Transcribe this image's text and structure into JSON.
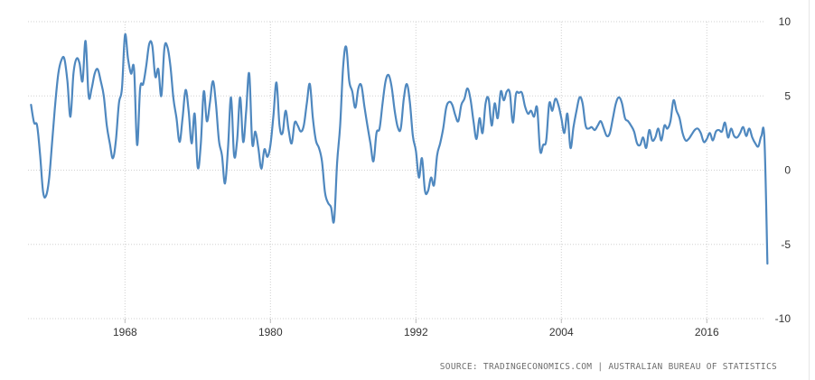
{
  "source": "SOURCE: TRADINGECONOMICS.COM  |  AUSTRALIAN BUREAU OF STATISTICS",
  "colors": {
    "line": "#4f88bf",
    "grid": "#d0d0d0",
    "text": "#333333"
  },
  "chart_data": {
    "type": "line",
    "title": "",
    "xlabel": "",
    "ylabel": "",
    "xlim": [
      1960.0,
      2020.75
    ],
    "ylim": [
      -10,
      10
    ],
    "x_ticks": [
      1968,
      1980,
      1992,
      2004,
      2016
    ],
    "y_ticks": [
      10,
      5,
      0,
      -5,
      -10
    ],
    "x_tick_labels": [
      "1968",
      "1980",
      "1992",
      "2004",
      "2016"
    ],
    "y_tick_labels": [
      "10",
      "5",
      "0",
      "-5",
      "-10"
    ],
    "grid": true,
    "legend": "none",
    "series": [
      {
        "points": [
          [
            1960.25,
            4.4
          ],
          [
            1960.5,
            3.2
          ],
          [
            1960.75,
            3.0
          ],
          [
            1961.0,
            1.0
          ],
          [
            1961.25,
            -1.5
          ],
          [
            1961.5,
            -1.7
          ],
          [
            1961.75,
            -0.5
          ],
          [
            1962.0,
            2.0
          ],
          [
            1962.25,
            4.5
          ],
          [
            1962.5,
            6.5
          ],
          [
            1962.75,
            7.4
          ],
          [
            1963.0,
            7.5
          ],
          [
            1963.25,
            6.0
          ],
          [
            1963.5,
            3.6
          ],
          [
            1963.75,
            6.5
          ],
          [
            1964.0,
            7.5
          ],
          [
            1964.25,
            7.2
          ],
          [
            1964.5,
            6.0
          ],
          [
            1964.75,
            8.7
          ],
          [
            1965.0,
            5.0
          ],
          [
            1965.25,
            5.5
          ],
          [
            1965.5,
            6.5
          ],
          [
            1965.75,
            6.8
          ],
          [
            1966.0,
            6.0
          ],
          [
            1966.25,
            5.0
          ],
          [
            1966.5,
            3.0
          ],
          [
            1966.75,
            1.8
          ],
          [
            1967.0,
            0.8
          ],
          [
            1967.25,
            2.0
          ],
          [
            1967.5,
            4.5
          ],
          [
            1967.75,
            5.5
          ],
          [
            1968.0,
            9.1
          ],
          [
            1968.25,
            7.5
          ],
          [
            1968.5,
            6.5
          ],
          [
            1968.75,
            6.8
          ],
          [
            1969.0,
            1.7
          ],
          [
            1969.25,
            5.5
          ],
          [
            1969.5,
            5.8
          ],
          [
            1969.75,
            7.0
          ],
          [
            1970.0,
            8.5
          ],
          [
            1970.25,
            8.4
          ],
          [
            1970.5,
            6.3
          ],
          [
            1970.75,
            6.8
          ],
          [
            1971.0,
            5.0
          ],
          [
            1971.25,
            8.2
          ],
          [
            1971.5,
            8.3
          ],
          [
            1971.75,
            7.0
          ],
          [
            1972.0,
            4.8
          ],
          [
            1972.25,
            3.5
          ],
          [
            1972.5,
            1.9
          ],
          [
            1972.75,
            3.5
          ],
          [
            1973.0,
            5.4
          ],
          [
            1973.25,
            4.0
          ],
          [
            1973.5,
            1.8
          ],
          [
            1973.75,
            3.8
          ],
          [
            1974.0,
            0.2
          ],
          [
            1974.25,
            1.7
          ],
          [
            1974.5,
            5.3
          ],
          [
            1974.75,
            3.3
          ],
          [
            1975.0,
            4.5
          ],
          [
            1975.25,
            6.0
          ],
          [
            1975.5,
            4.5
          ],
          [
            1975.75,
            2.0
          ],
          [
            1976.0,
            1.0
          ],
          [
            1976.25,
            -0.9
          ],
          [
            1976.5,
            1.5
          ],
          [
            1976.75,
            4.9
          ],
          [
            1977.0,
            1.0
          ],
          [
            1977.25,
            2.0
          ],
          [
            1977.5,
            4.9
          ],
          [
            1977.75,
            1.9
          ],
          [
            1978.0,
            4.0
          ],
          [
            1978.25,
            6.5
          ],
          [
            1978.5,
            1.8
          ],
          [
            1978.75,
            2.6
          ],
          [
            1979.0,
            1.5
          ],
          [
            1979.25,
            0.1
          ],
          [
            1979.5,
            1.4
          ],
          [
            1979.75,
            0.9
          ],
          [
            1980.0,
            1.7
          ],
          [
            1980.25,
            3.7
          ],
          [
            1980.5,
            5.9
          ],
          [
            1980.75,
            3.0
          ],
          [
            1981.0,
            2.5
          ],
          [
            1981.25,
            4.0
          ],
          [
            1981.5,
            2.7
          ],
          [
            1981.75,
            1.8
          ],
          [
            1982.0,
            3.2
          ],
          [
            1982.25,
            3.0
          ],
          [
            1982.5,
            2.6
          ],
          [
            1982.75,
            3.0
          ],
          [
            1983.0,
            4.5
          ],
          [
            1983.25,
            5.8
          ],
          [
            1983.5,
            3.5
          ],
          [
            1983.75,
            2.0
          ],
          [
            1984.0,
            1.5
          ],
          [
            1984.25,
            0.6
          ],
          [
            1984.5,
            -1.5
          ],
          [
            1984.75,
            -2.2
          ],
          [
            1985.0,
            -2.5
          ],
          [
            1985.25,
            -3.4
          ],
          [
            1985.5,
            0.5
          ],
          [
            1985.75,
            3.0
          ],
          [
            1986.0,
            7.0
          ],
          [
            1986.25,
            8.3
          ],
          [
            1986.5,
            6.0
          ],
          [
            1986.75,
            5.3
          ],
          [
            1987.0,
            4.2
          ],
          [
            1987.25,
            5.5
          ],
          [
            1987.5,
            5.7
          ],
          [
            1987.75,
            4.3
          ],
          [
            1988.0,
            3.0
          ],
          [
            1988.25,
            1.8
          ],
          [
            1988.5,
            0.6
          ],
          [
            1988.75,
            2.5
          ],
          [
            1989.0,
            2.8
          ],
          [
            1989.25,
            4.5
          ],
          [
            1989.5,
            6.0
          ],
          [
            1989.75,
            6.4
          ],
          [
            1990.0,
            5.6
          ],
          [
            1990.25,
            4.0
          ],
          [
            1990.5,
            2.9
          ],
          [
            1990.75,
            2.8
          ],
          [
            1991.0,
            4.8
          ],
          [
            1991.25,
            5.8
          ],
          [
            1991.5,
            4.6
          ],
          [
            1991.75,
            2.3
          ],
          [
            1992.0,
            1.3
          ],
          [
            1992.25,
            -0.5
          ],
          [
            1992.5,
            0.8
          ],
          [
            1992.75,
            -1.4
          ],
          [
            1993.0,
            -1.4
          ],
          [
            1993.25,
            -0.5
          ],
          [
            1993.5,
            -1.0
          ],
          [
            1993.75,
            1.0
          ],
          [
            1994.0,
            1.8
          ],
          [
            1994.25,
            2.8
          ],
          [
            1994.5,
            4.2
          ],
          [
            1994.75,
            4.6
          ],
          [
            1995.0,
            4.4
          ],
          [
            1995.25,
            3.7
          ],
          [
            1995.5,
            3.3
          ],
          [
            1995.75,
            4.4
          ],
          [
            1996.0,
            4.8
          ],
          [
            1996.25,
            5.5
          ],
          [
            1996.5,
            4.8
          ],
          [
            1996.75,
            3.3
          ],
          [
            1997.0,
            2.1
          ],
          [
            1997.25,
            3.5
          ],
          [
            1997.5,
            2.5
          ],
          [
            1997.75,
            4.5
          ],
          [
            1998.0,
            4.8
          ],
          [
            1998.25,
            3.0
          ],
          [
            1998.5,
            4.5
          ],
          [
            1998.75,
            3.5
          ],
          [
            1999.0,
            5.3
          ],
          [
            1999.25,
            4.7
          ],
          [
            1999.5,
            5.3
          ],
          [
            1999.75,
            5.2
          ],
          [
            2000.0,
            3.2
          ],
          [
            2000.25,
            5.1
          ],
          [
            2000.5,
            5.2
          ],
          [
            2000.75,
            5.2
          ],
          [
            2001.0,
            4.3
          ],
          [
            2001.25,
            3.8
          ],
          [
            2001.5,
            4.0
          ],
          [
            2001.75,
            3.6
          ],
          [
            2002.0,
            4.2
          ],
          [
            2002.25,
            1.3
          ],
          [
            2002.5,
            1.7
          ],
          [
            2002.75,
            2.0
          ],
          [
            2003.0,
            4.5
          ],
          [
            2003.25,
            4.0
          ],
          [
            2003.5,
            4.8
          ],
          [
            2003.75,
            4.4
          ],
          [
            2004.0,
            3.5
          ],
          [
            2004.25,
            2.5
          ],
          [
            2004.5,
            3.8
          ],
          [
            2004.75,
            1.5
          ],
          [
            2005.0,
            2.9
          ],
          [
            2005.25,
            4.0
          ],
          [
            2005.5,
            4.9
          ],
          [
            2005.75,
            4.5
          ],
          [
            2006.0,
            3.0
          ],
          [
            2006.25,
            2.8
          ],
          [
            2006.5,
            2.9
          ],
          [
            2006.75,
            2.7
          ],
          [
            2007.0,
            3.0
          ],
          [
            2007.25,
            3.3
          ],
          [
            2007.5,
            2.8
          ],
          [
            2007.75,
            2.3
          ],
          [
            2008.0,
            2.5
          ],
          [
            2008.25,
            3.5
          ],
          [
            2008.5,
            4.5
          ],
          [
            2008.75,
            4.9
          ],
          [
            2009.0,
            4.5
          ],
          [
            2009.25,
            3.5
          ],
          [
            2009.5,
            3.3
          ],
          [
            2009.75,
            3.0
          ],
          [
            2010.0,
            2.6
          ],
          [
            2010.25,
            1.8
          ],
          [
            2010.5,
            1.7
          ],
          [
            2010.75,
            2.2
          ],
          [
            2011.0,
            1.5
          ],
          [
            2011.25,
            2.7
          ],
          [
            2011.5,
            2.0
          ],
          [
            2011.75,
            2.2
          ],
          [
            2012.0,
            2.8
          ],
          [
            2012.25,
            2.0
          ],
          [
            2012.5,
            3.0
          ],
          [
            2012.75,
            2.8
          ],
          [
            2013.0,
            3.3
          ],
          [
            2013.25,
            4.7
          ],
          [
            2013.5,
            4.0
          ],
          [
            2013.75,
            3.5
          ],
          [
            2014.0,
            2.5
          ],
          [
            2014.25,
            2.0
          ],
          [
            2014.5,
            2.1
          ],
          [
            2014.75,
            2.4
          ],
          [
            2015.0,
            2.7
          ],
          [
            2015.25,
            2.8
          ],
          [
            2015.5,
            2.5
          ],
          [
            2015.75,
            1.9
          ],
          [
            2016.0,
            2.1
          ],
          [
            2016.25,
            2.5
          ],
          [
            2016.5,
            2.0
          ],
          [
            2016.75,
            2.6
          ],
          [
            2017.0,
            2.7
          ],
          [
            2017.25,
            2.6
          ],
          [
            2017.5,
            3.2
          ],
          [
            2017.75,
            2.2
          ],
          [
            2018.0,
            2.8
          ],
          [
            2018.25,
            2.3
          ],
          [
            2018.5,
            2.2
          ],
          [
            2018.75,
            2.5
          ],
          [
            2019.0,
            2.9
          ],
          [
            2019.25,
            2.3
          ],
          [
            2019.5,
            2.8
          ],
          [
            2019.75,
            2.2
          ],
          [
            2020.0,
            1.8
          ],
          [
            2020.25,
            1.6
          ],
          [
            2020.5,
            2.3
          ],
          [
            2020.75,
            2.1
          ],
          [
            2021.0,
            -6.3
          ]
        ]
      }
    ]
  }
}
